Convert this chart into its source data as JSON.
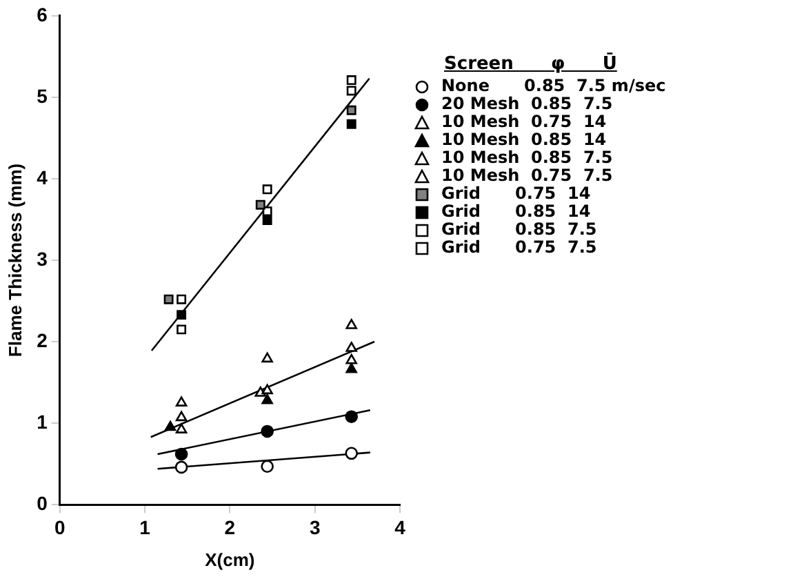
{
  "chart_data": {
    "type": "scatter",
    "xlabel": "X(cm)",
    "ylabel": "Flame Thickness (mm)",
    "legend_title": "Screen      φ      Ū",
    "legend": "right",
    "grid": false,
    "xlim": [
      0,
      4
    ],
    "xticks": [
      0,
      1,
      2,
      3,
      4
    ],
    "ylim": [
      0,
      6
    ],
    "yticks": [
      0,
      1,
      2,
      3,
      4,
      5,
      6
    ],
    "series": [
      {
        "name": "None      0.85  7.5 m/sec",
        "color": "#ffffff",
        "marker": "circle",
        "x": [
          1.43,
          2.44,
          3.43
        ],
        "values": [
          0.46,
          0.47,
          0.63
        ]
      },
      {
        "name": "20 Mesh  0.85  7.5",
        "color": "#000000",
        "marker": "circle",
        "x": [
          1.43,
          2.44,
          3.43
        ],
        "values": [
          0.62,
          0.9,
          1.08
        ]
      },
      {
        "name": "10 Mesh  0.75  14",
        "color": "#ffffff",
        "marker": "triangle",
        "x": [
          1.43,
          2.44,
          3.43
        ],
        "values": [
          1.25,
          1.79,
          2.2
        ]
      },
      {
        "name": "10 Mesh  0.85  14",
        "color": "#000000",
        "marker": "triangle",
        "x": [
          1.3,
          2.44,
          3.43
        ],
        "values": [
          0.95,
          1.28,
          1.66
        ]
      },
      {
        "name": "10 Mesh  0.85  7.5",
        "color": "#ffffff",
        "marker": "triangle",
        "x": [
          1.43,
          2.44,
          3.43
        ],
        "values": [
          1.07,
          1.4,
          1.92
        ]
      },
      {
        "name": "10 Mesh  0.75  7.5",
        "color": "#ffffff",
        "marker": "triangle",
        "x": [
          1.43,
          2.36,
          3.43
        ],
        "values": [
          0.92,
          1.37,
          1.77
        ]
      },
      {
        "name": "Grid      0.75  14",
        "color": "#808080",
        "marker": "square",
        "x": [
          1.28,
          2.36,
          3.43
        ],
        "values": [
          2.52,
          3.68,
          4.84
        ]
      },
      {
        "name": "Grid      0.85  14",
        "color": "#000000",
        "marker": "square",
        "x": [
          1.43,
          2.44,
          3.43
        ],
        "values": [
          2.33,
          3.49,
          4.67
        ]
      },
      {
        "name": "Grid      0.85  7.5",
        "color": "#ffffff",
        "marker": "square",
        "x": [
          1.43,
          2.44,
          3.43
        ],
        "values": [
          2.15,
          3.6,
          5.08
        ]
      },
      {
        "name": "Grid      0.75  7.5",
        "color": "#ffffff",
        "marker": "square",
        "x": [
          1.43,
          2.44,
          3.43
        ],
        "values": [
          2.52,
          3.87,
          5.21
        ]
      },
      {
        "type": "line",
        "color": "#000000",
        "marker": "none",
        "x": [
          1.08,
          3.64
        ],
        "values": [
          1.89,
          5.23
        ]
      },
      {
        "type": "line",
        "color": "#000000",
        "marker": "none",
        "x": [
          1.07,
          3.7
        ],
        "values": [
          0.83,
          2.0
        ]
      },
      {
        "type": "line",
        "color": "#000000",
        "marker": "none",
        "x": [
          1.15,
          3.65
        ],
        "values": [
          0.62,
          1.16
        ]
      },
      {
        "type": "line",
        "color": "#000000",
        "marker": "none",
        "x": [
          1.15,
          3.65
        ],
        "values": [
          0.44,
          0.64
        ]
      }
    ]
  }
}
